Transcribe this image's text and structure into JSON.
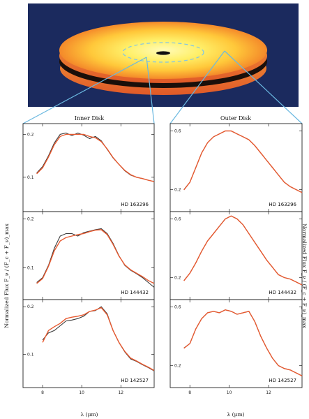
{
  "colors": {
    "disk_background": "#1b2a5e",
    "disk_inner": "#fffbb8",
    "disk_mid": "#ffcf45",
    "disk_outer": "#f4892a",
    "disk_edge": "#e8602a",
    "disk_shadow": "#1a0f0a",
    "zoom_lines": "#6ab8e0",
    "observed_line": "#3a3a3a",
    "model_line": "#e85a30"
  },
  "columns": [
    {
      "title": "Inner Disk"
    },
    {
      "title": "Outer Disk"
    }
  ],
  "axes": {
    "xlabel": "λ (μm)",
    "ylabel_left": "Normalized Flux   F_ν / (F_c + F_ν)_max",
    "ylabel_right": "Normalized Flux   F_ν / (F_c + F_ν)_max"
  },
  "chart_data": [
    {
      "type": "line",
      "column": "Inner Disk",
      "label": "HD 163296",
      "xlim": [
        7,
        13.7
      ],
      "ylim": [
        0.02,
        0.225
      ],
      "xticks": [
        8,
        10,
        12
      ],
      "yticks": [
        0.1,
        0.2
      ],
      "ytick_labels": [
        "0.1",
        "0.2"
      ],
      "series": [
        {
          "kind": "observed",
          "x": [
            7.7,
            8.0,
            8.3,
            8.6,
            8.9,
            9.2,
            9.5,
            9.8,
            10.1,
            10.4,
            10.7,
            11.0,
            11.3,
            11.6,
            11.9,
            12.2,
            12.5,
            12.8,
            13.1,
            13.4,
            13.7
          ],
          "y": [
            0.11,
            0.125,
            0.15,
            0.18,
            0.2,
            0.203,
            0.197,
            0.203,
            0.198,
            0.19,
            0.195,
            0.185,
            0.165,
            0.145,
            0.13,
            0.115,
            0.105,
            0.1,
            0.097,
            0.093,
            0.09
          ]
        },
        {
          "kind": "model",
          "x": [
            7.7,
            8.0,
            8.3,
            8.6,
            8.9,
            9.2,
            9.5,
            9.8,
            10.1,
            10.4,
            10.7,
            11.0,
            11.3,
            11.6,
            11.9,
            12.2,
            12.5,
            12.8,
            13.1,
            13.4,
            13.7
          ],
          "y": [
            0.108,
            0.122,
            0.147,
            0.176,
            0.195,
            0.2,
            0.2,
            0.2,
            0.2,
            0.195,
            0.192,
            0.183,
            0.166,
            0.146,
            0.13,
            0.116,
            0.106,
            0.1,
            0.097,
            0.093,
            0.09
          ]
        }
      ]
    },
    {
      "type": "line",
      "column": "Inner Disk",
      "label": "HD 144432",
      "xlim": [
        7,
        13.7
      ],
      "ylim": [
        0.035,
        0.215
      ],
      "xticks": [
        8,
        10,
        12
      ],
      "yticks": [
        0.1,
        0.2
      ],
      "ytick_labels": [
        "0.1",
        "0.2"
      ],
      "series": [
        {
          "kind": "observed",
          "x": [
            7.7,
            8.0,
            8.3,
            8.6,
            8.9,
            9.2,
            9.5,
            9.8,
            10.1,
            10.4,
            10.7,
            11.0,
            11.3,
            11.6,
            11.9,
            12.2,
            12.5,
            12.8,
            13.1,
            13.4,
            13.7
          ],
          "y": [
            0.07,
            0.08,
            0.105,
            0.14,
            0.165,
            0.17,
            0.17,
            0.165,
            0.172,
            0.175,
            0.178,
            0.18,
            0.17,
            0.15,
            0.125,
            0.105,
            0.095,
            0.088,
            0.08,
            0.07,
            0.06
          ]
        },
        {
          "kind": "model",
          "x": [
            7.7,
            8.0,
            8.3,
            8.6,
            8.9,
            9.2,
            9.5,
            9.8,
            10.1,
            10.4,
            10.7,
            11.0,
            11.3,
            11.6,
            11.9,
            12.2,
            12.5,
            12.8,
            13.1,
            13.4,
            13.7
          ],
          "y": [
            0.068,
            0.078,
            0.103,
            0.135,
            0.155,
            0.162,
            0.165,
            0.168,
            0.17,
            0.174,
            0.177,
            0.178,
            0.168,
            0.148,
            0.124,
            0.106,
            0.096,
            0.089,
            0.082,
            0.074,
            0.068
          ]
        }
      ]
    },
    {
      "type": "line",
      "column": "Inner Disk",
      "label": "HD 142527",
      "xlim": [
        7,
        13.7
      ],
      "ylim": [
        0.03,
        0.215
      ],
      "xticks": [
        8,
        10,
        12
      ],
      "xtick_labels": [
        "8",
        "10",
        "12"
      ],
      "yticks": [
        0.1,
        0.2
      ],
      "ytick_labels": [
        "0.1",
        "0.2"
      ],
      "series": [
        {
          "kind": "observed",
          "x": [
            8.0,
            8.3,
            8.6,
            8.9,
            9.2,
            9.5,
            9.8,
            10.1,
            10.4,
            10.7,
            11.0,
            11.3,
            11.6,
            11.9,
            12.2,
            12.5,
            12.8,
            13.1,
            13.4,
            13.7
          ],
          "y": [
            0.13,
            0.145,
            0.15,
            0.16,
            0.17,
            0.172,
            0.175,
            0.18,
            0.19,
            0.192,
            0.2,
            0.185,
            0.15,
            0.125,
            0.105,
            0.09,
            0.085,
            0.078,
            0.072,
            0.065
          ]
        },
        {
          "kind": "model",
          "x": [
            8.0,
            8.3,
            8.6,
            8.9,
            9.2,
            9.5,
            9.8,
            10.1,
            10.4,
            10.7,
            11.0,
            11.3,
            11.6,
            11.9,
            12.2,
            12.5,
            12.8,
            13.1,
            13.4,
            13.7
          ],
          "y": [
            0.125,
            0.15,
            0.158,
            0.165,
            0.175,
            0.178,
            0.18,
            0.183,
            0.19,
            0.193,
            0.198,
            0.183,
            0.15,
            0.125,
            0.106,
            0.092,
            0.086,
            0.079,
            0.073,
            0.066
          ]
        }
      ]
    },
    {
      "type": "line",
      "column": "Outer Disk",
      "label": "HD 163296",
      "xlim": [
        7,
        13.7
      ],
      "ylim": [
        0.05,
        0.65
      ],
      "xticks": [
        8,
        10,
        12
      ],
      "yticks": [
        0.2,
        0.6
      ],
      "ytick_labels": [
        "0.2",
        "0.6"
      ],
      "series": [
        {
          "kind": "observed",
          "x": [
            7.7,
            8.0,
            8.3,
            8.6,
            8.9,
            9.2,
            9.5,
            9.8,
            10.1,
            10.4,
            10.7,
            11.0,
            11.3,
            11.6,
            11.9,
            12.2,
            12.5,
            12.8,
            13.1,
            13.4,
            13.7
          ],
          "y": [
            0.2,
            0.25,
            0.35,
            0.45,
            0.52,
            0.56,
            0.58,
            0.6,
            0.6,
            0.58,
            0.56,
            0.54,
            0.5,
            0.45,
            0.4,
            0.35,
            0.3,
            0.25,
            0.22,
            0.2,
            0.18
          ]
        },
        {
          "kind": "model",
          "x": [
            7.7,
            8.0,
            8.3,
            8.6,
            8.9,
            9.2,
            9.5,
            9.8,
            10.1,
            10.4,
            10.7,
            11.0,
            11.3,
            11.6,
            11.9,
            12.2,
            12.5,
            12.8,
            13.1,
            13.4,
            13.7
          ],
          "y": [
            0.198,
            0.25,
            0.35,
            0.45,
            0.52,
            0.56,
            0.58,
            0.6,
            0.6,
            0.58,
            0.56,
            0.54,
            0.5,
            0.45,
            0.4,
            0.35,
            0.3,
            0.25,
            0.22,
            0.2,
            0.18
          ]
        }
      ]
    },
    {
      "type": "line",
      "column": "Outer Disk",
      "label": "HD 144432",
      "xlim": [
        7,
        13.7
      ],
      "ylim": [
        0.05,
        0.65
      ],
      "xticks": [
        8,
        10,
        12
      ],
      "yticks": [
        0.2,
        0.6
      ],
      "ytick_labels": [
        "0.2",
        "0.6"
      ],
      "series": [
        {
          "kind": "observed",
          "x": [
            7.7,
            8.0,
            8.3,
            8.6,
            8.9,
            9.2,
            9.5,
            9.8,
            10.1,
            10.4,
            10.7,
            11.0,
            11.3,
            11.6,
            11.9,
            12.2,
            12.5,
            12.8,
            13.1,
            13.4,
            13.7
          ],
          "y": [
            0.18,
            0.23,
            0.3,
            0.38,
            0.45,
            0.5,
            0.55,
            0.6,
            0.62,
            0.6,
            0.56,
            0.5,
            0.44,
            0.38,
            0.32,
            0.27,
            0.22,
            0.2,
            0.19,
            0.17,
            0.15
          ]
        },
        {
          "kind": "model",
          "x": [
            7.7,
            8.0,
            8.3,
            8.6,
            8.9,
            9.2,
            9.5,
            9.8,
            10.1,
            10.4,
            10.7,
            11.0,
            11.3,
            11.6,
            11.9,
            12.2,
            12.5,
            12.8,
            13.1,
            13.4,
            13.7
          ],
          "y": [
            0.178,
            0.23,
            0.3,
            0.38,
            0.45,
            0.5,
            0.55,
            0.6,
            0.62,
            0.6,
            0.56,
            0.5,
            0.44,
            0.38,
            0.32,
            0.27,
            0.22,
            0.2,
            0.19,
            0.17,
            0.15
          ]
        }
      ]
    },
    {
      "type": "line",
      "column": "Outer Disk",
      "label": "HD 142527",
      "xlim": [
        7,
        13.7
      ],
      "ylim": [
        0.05,
        0.65
      ],
      "xticks": [
        8,
        10,
        12
      ],
      "xtick_labels": [
        "8",
        "10",
        "12"
      ],
      "yticks": [
        0.2,
        0.6
      ],
      "ytick_labels": [
        "0.2",
        "0.6"
      ],
      "series": [
        {
          "kind": "observed",
          "x": [
            7.7,
            8.0,
            8.3,
            8.6,
            8.9,
            9.2,
            9.5,
            9.8,
            10.1,
            10.4,
            10.7,
            11.0,
            11.3,
            11.6,
            11.9,
            12.2,
            12.5,
            12.8,
            13.1,
            13.4,
            13.7
          ],
          "y": [
            0.32,
            0.35,
            0.45,
            0.52,
            0.56,
            0.57,
            0.56,
            0.58,
            0.57,
            0.55,
            0.56,
            0.57,
            0.5,
            0.4,
            0.32,
            0.25,
            0.2,
            0.18,
            0.17,
            0.15,
            0.13
          ]
        },
        {
          "kind": "model",
          "x": [
            7.7,
            8.0,
            8.3,
            8.6,
            8.9,
            9.2,
            9.5,
            9.8,
            10.1,
            10.4,
            10.7,
            11.0,
            11.3,
            11.6,
            11.9,
            12.2,
            12.5,
            12.8,
            13.1,
            13.4,
            13.7
          ],
          "y": [
            0.318,
            0.35,
            0.45,
            0.52,
            0.56,
            0.57,
            0.56,
            0.58,
            0.57,
            0.55,
            0.56,
            0.57,
            0.5,
            0.4,
            0.32,
            0.25,
            0.2,
            0.18,
            0.17,
            0.15,
            0.13
          ]
        }
      ]
    }
  ]
}
